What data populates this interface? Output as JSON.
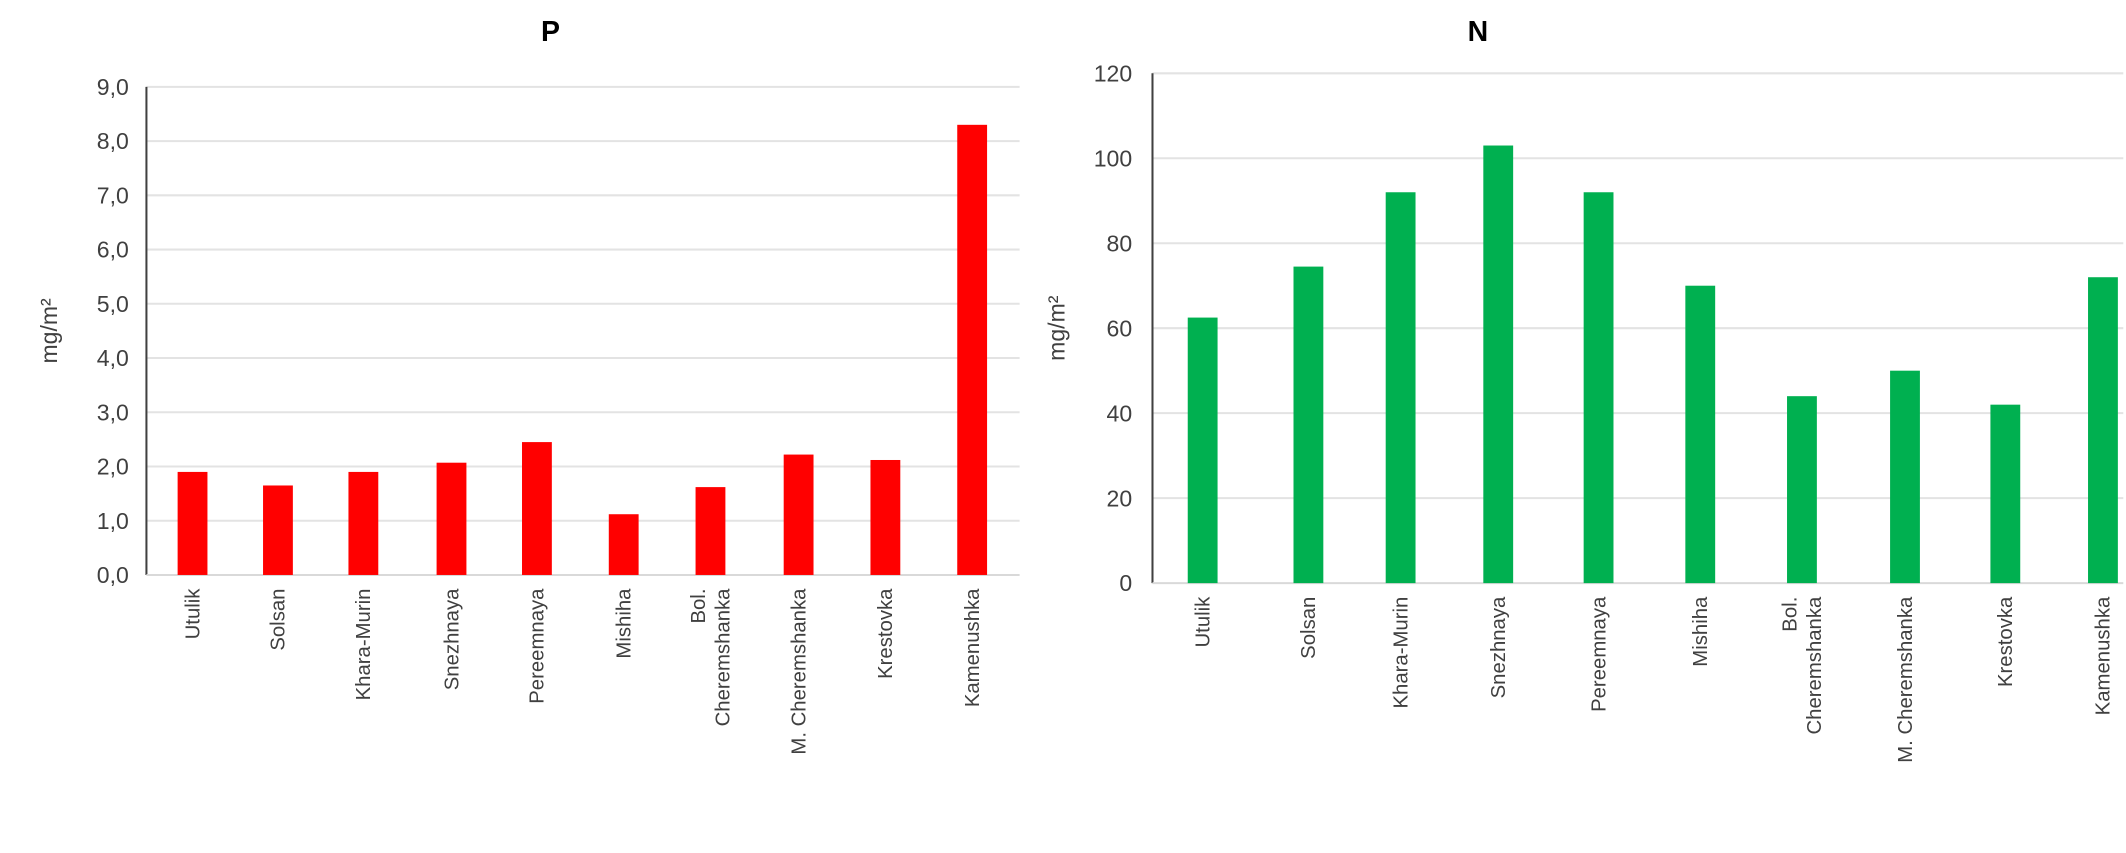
{
  "chart_data": [
    {
      "type": "bar",
      "title": "P",
      "xlabel": "",
      "ylabel": "mg/m²",
      "ylim": [
        0,
        9
      ],
      "yticks": [
        "0,0",
        "1,0",
        "2,0",
        "3,0",
        "4,0",
        "5,0",
        "6,0",
        "7,0",
        "8,0",
        "9,0"
      ],
      "grid": true,
      "color": "#ff0000",
      "categories": [
        "Utulik",
        "Solsan",
        "Khara-Murin",
        "Snezhnaya",
        "Pereemnaya",
        "Mishiha",
        "Bol. Cheremshanka",
        "M. Cheremshanka",
        "Krestovka",
        "Kamenushka"
      ],
      "values": [
        1.9,
        1.65,
        1.9,
        2.07,
        2.45,
        1.12,
        1.62,
        2.22,
        2.12,
        8.3
      ]
    },
    {
      "type": "bar",
      "title": "N",
      "xlabel": "",
      "ylabel": "mg/m²",
      "ylim": [
        0,
        120
      ],
      "yticks": [
        "0",
        "20",
        "40",
        "60",
        "80",
        "100",
        "120"
      ],
      "grid": true,
      "color": "#00b050",
      "categories": [
        "Utulik",
        "Solsan",
        "Khara-Murin",
        "Snezhnaya",
        "Pereemnaya",
        "Mishiha",
        "Bol. Cheremshanka",
        "M. Cheremshanka",
        "Krestovka",
        "Kamenushka"
      ],
      "values": [
        62.5,
        74.5,
        92,
        103,
        92,
        70,
        44,
        50,
        42,
        72
      ]
    }
  ]
}
